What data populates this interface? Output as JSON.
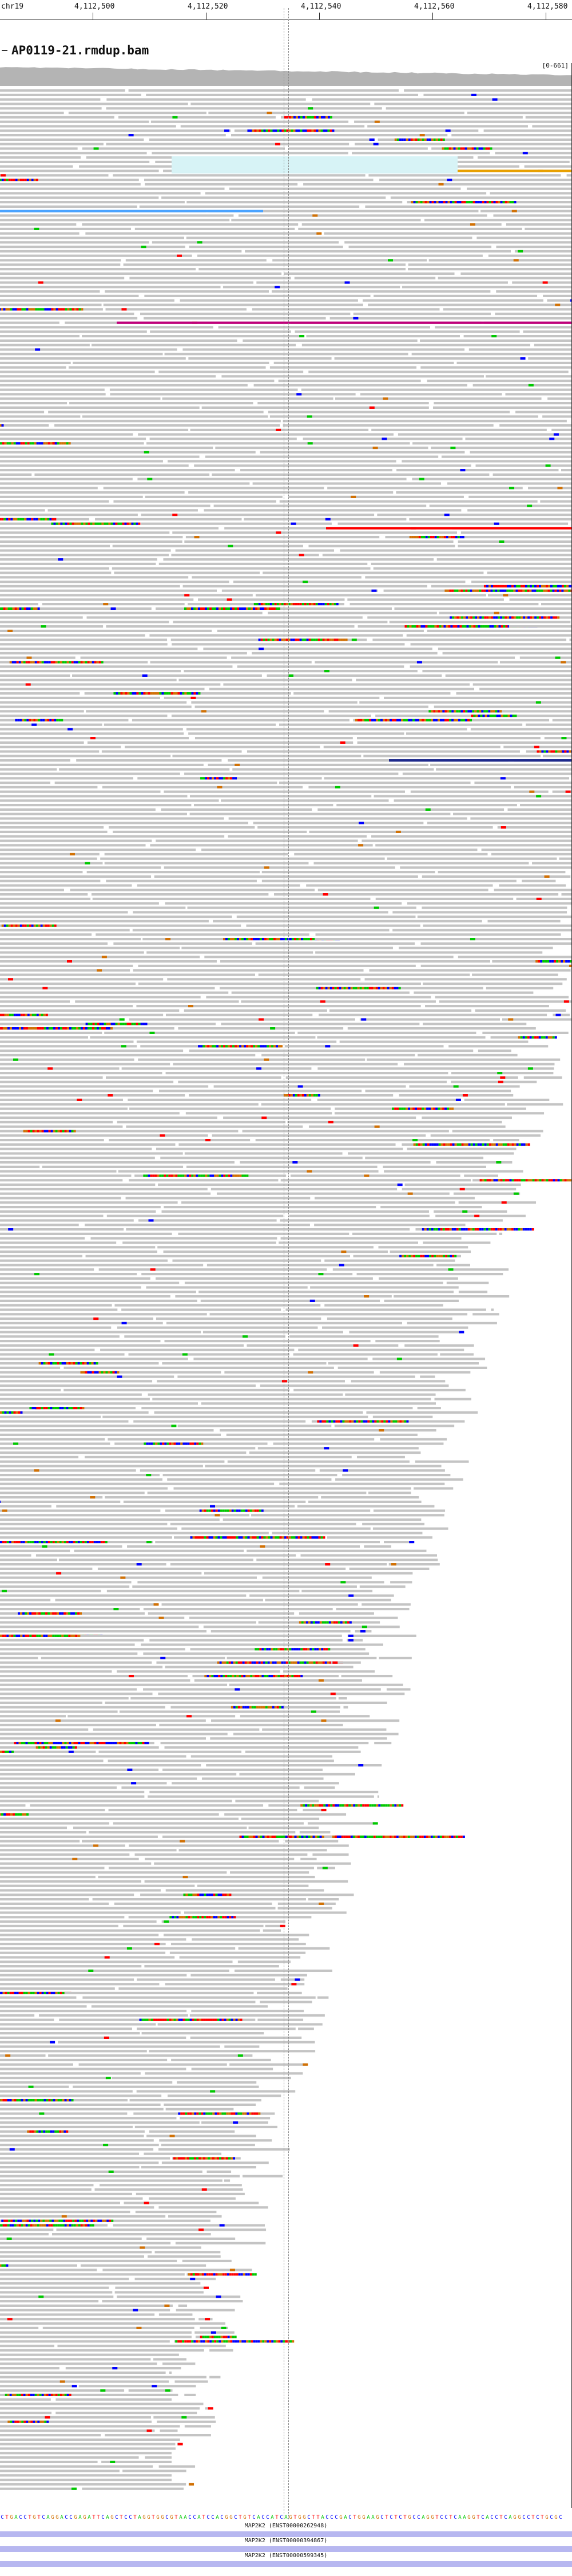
{
  "ruler": {
    "chrom": "chr19",
    "ticks": [
      "4,112,500",
      "4,112,520",
      "4,112,540",
      "4,112,560",
      "4,112,580"
    ]
  },
  "track": {
    "title": "AP0119-21.rmdup.bam",
    "coverage_range": "[0-661]"
  },
  "colors": {
    "read": "#c4c4c4",
    "A": "#00c800",
    "C": "#0000ff",
    "G": "#d17105",
    "T": "#ff0000",
    "coverage": "#b4b4b4",
    "insert_pink": "#c0007b",
    "insert_navy": "#1e2a8c",
    "light_cyan": "#d7f3f6",
    "orange_line": "#e8a000",
    "gene": "#b7b7f0"
  },
  "reference_sequence": "CTGACCTGTCAGGACCGAGATTCAGCTCCTAGGTGGCGTAACCATCCACGGCTGTCACCATCAGTGGCTTACCCGACTGGAAGCTCTCTGCCAGGTCCTCAAGGTCACCTCAGGCCTCTGCGC",
  "genes": [
    {
      "label": "MAP2K2 (ENST00000262948)"
    },
    {
      "label": "MAP2K2 (ENST00000394867)"
    },
    {
      "label": "MAP2K2 (ENST00000599345)"
    }
  ]
}
